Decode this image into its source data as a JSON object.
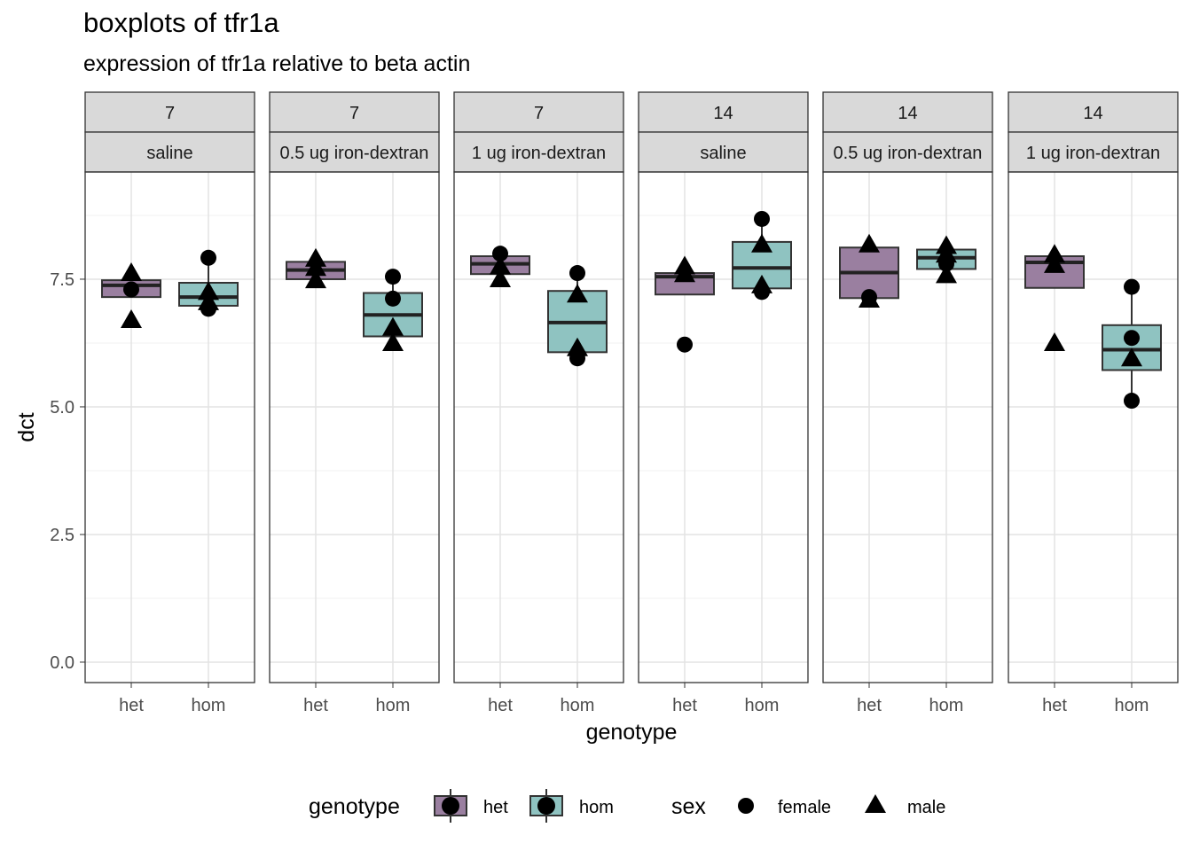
{
  "title": "boxplots of tfr1a",
  "subtitle": "expression of tfr1a relative to beta actin",
  "chart_data": {
    "type": "boxplot",
    "xlabel": "genotype",
    "ylabel": "dct",
    "ylim": [
      -0.4,
      9.6
    ],
    "yticks": [
      0.0,
      2.5,
      5.0,
      7.5
    ],
    "ytick_labels": [
      "0.0",
      "2.5",
      "5.0",
      "7.5"
    ],
    "categories": [
      "het",
      "hom"
    ],
    "grid": true,
    "legend_placement": "bottom",
    "colors": {
      "het": "#9a7fa0",
      "hom": "#8fc3c1",
      "box_stroke": "#333333",
      "strip_fill": "#d9d9d9"
    },
    "legend": {
      "genotype_title": "genotype",
      "genotype_items": [
        "het",
        "hom"
      ],
      "sex_title": "sex",
      "sex_items": [
        {
          "label": "female",
          "shape": "circle"
        },
        {
          "label": "male",
          "shape": "triangle"
        }
      ]
    },
    "panels": [
      {
        "day": "7",
        "treatment": "saline",
        "boxes": [
          {
            "genotype": "het",
            "min": 7.15,
            "q1": 7.15,
            "median": 7.38,
            "q3": 7.48,
            "max": 7.6,
            "points": [
              {
                "y": 7.3,
                "sex": "female"
              },
              {
                "y": 7.62,
                "sex": "male"
              },
              {
                "y": 6.7,
                "sex": "male"
              }
            ]
          },
          {
            "genotype": "hom",
            "min": 6.98,
            "q1": 6.98,
            "median": 7.15,
            "q3": 7.43,
            "max": 7.92,
            "points": [
              {
                "y": 7.92,
                "sex": "female"
              },
              {
                "y": 6.92,
                "sex": "female"
              },
              {
                "y": 7.25,
                "sex": "male"
              },
              {
                "y": 7.05,
                "sex": "male"
              }
            ]
          }
        ]
      },
      {
        "day": "7",
        "treatment": "0.5 ug iron-dextran",
        "boxes": [
          {
            "genotype": "het",
            "min": 7.5,
            "q1": 7.5,
            "median": 7.68,
            "q3": 7.84,
            "max": 7.9,
            "points": [
              {
                "y": 7.9,
                "sex": "male"
              },
              {
                "y": 7.72,
                "sex": "male"
              },
              {
                "y": 7.48,
                "sex": "male"
              }
            ]
          },
          {
            "genotype": "hom",
            "min": 6.2,
            "q1": 6.38,
            "median": 6.8,
            "q3": 7.23,
            "max": 7.55,
            "points": [
              {
                "y": 7.55,
                "sex": "female"
              },
              {
                "y": 7.12,
                "sex": "female"
              },
              {
                "y": 6.55,
                "sex": "male"
              },
              {
                "y": 6.25,
                "sex": "male"
              }
            ]
          }
        ]
      },
      {
        "day": "7",
        "treatment": "1 ug iron-dextran",
        "boxes": [
          {
            "genotype": "het",
            "min": 7.5,
            "q1": 7.6,
            "median": 7.8,
            "q3": 7.95,
            "max": 8.0,
            "points": [
              {
                "y": 8.0,
                "sex": "female"
              },
              {
                "y": 7.75,
                "sex": "male"
              },
              {
                "y": 7.5,
                "sex": "male"
              }
            ]
          },
          {
            "genotype": "hom",
            "min": 5.95,
            "q1": 6.07,
            "median": 6.65,
            "q3": 7.27,
            "max": 7.62,
            "points": [
              {
                "y": 7.62,
                "sex": "female"
              },
              {
                "y": 5.95,
                "sex": "female"
              },
              {
                "y": 7.2,
                "sex": "male"
              },
              {
                "y": 6.15,
                "sex": "male"
              }
            ]
          }
        ]
      },
      {
        "day": "14",
        "treatment": "saline",
        "boxes": [
          {
            "genotype": "het",
            "min": 7.2,
            "q1": 7.2,
            "median": 7.55,
            "q3": 7.62,
            "max": 7.75,
            "points": [
              {
                "y": 6.22,
                "sex": "female"
              },
              {
                "y": 7.75,
                "sex": "male"
              },
              {
                "y": 7.6,
                "sex": "male"
              }
            ]
          },
          {
            "genotype": "hom",
            "min": 7.25,
            "q1": 7.32,
            "median": 7.72,
            "q3": 8.23,
            "max": 8.68,
            "points": [
              {
                "y": 8.68,
                "sex": "female"
              },
              {
                "y": 7.25,
                "sex": "female"
              },
              {
                "y": 8.18,
                "sex": "male"
              },
              {
                "y": 7.38,
                "sex": "male"
              }
            ]
          }
        ]
      },
      {
        "day": "14",
        "treatment": "0.5 ug iron-dextran",
        "boxes": [
          {
            "genotype": "het",
            "min": 7.1,
            "q1": 7.13,
            "median": 7.63,
            "q3": 8.12,
            "max": 8.18,
            "points": [
              {
                "y": 7.15,
                "sex": "female"
              },
              {
                "y": 8.18,
                "sex": "male"
              },
              {
                "y": 7.1,
                "sex": "male"
              }
            ]
          },
          {
            "genotype": "hom",
            "min": 7.55,
            "q1": 7.7,
            "median": 7.92,
            "q3": 8.08,
            "max": 8.15,
            "points": [
              {
                "y": 7.8,
                "sex": "female"
              },
              {
                "y": 8.15,
                "sex": "male"
              },
              {
                "y": 7.98,
                "sex": "male"
              },
              {
                "y": 7.58,
                "sex": "male"
              }
            ]
          }
        ]
      },
      {
        "day": "14",
        "treatment": "1 ug iron-dextran",
        "boxes": [
          {
            "genotype": "het",
            "min": 7.33,
            "q1": 7.33,
            "median": 7.83,
            "q3": 7.95,
            "max": 7.98,
            "points": [
              {
                "y": 7.98,
                "sex": "male"
              },
              {
                "y": 7.78,
                "sex": "male"
              },
              {
                "y": 6.25,
                "sex": "male"
              }
            ]
          },
          {
            "genotype": "hom",
            "min": 5.12,
            "q1": 5.72,
            "median": 6.12,
            "q3": 6.6,
            "max": 7.35,
            "points": [
              {
                "y": 7.35,
                "sex": "female"
              },
              {
                "y": 6.35,
                "sex": "female"
              },
              {
                "y": 5.12,
                "sex": "female"
              },
              {
                "y": 5.95,
                "sex": "male"
              }
            ]
          }
        ]
      }
    ]
  }
}
